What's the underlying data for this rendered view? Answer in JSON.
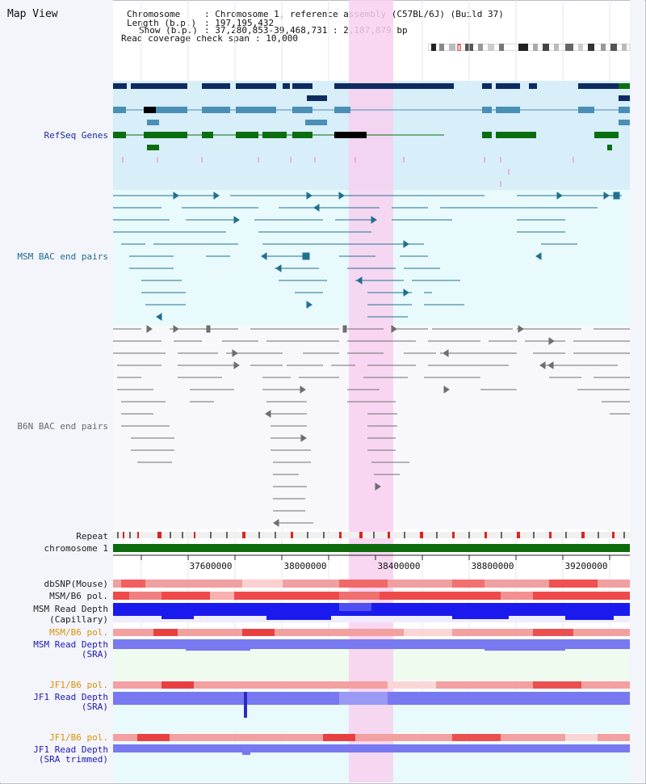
{
  "app": {
    "title": "Map View"
  },
  "info": {
    "chromosome_label": "Chromosome",
    "chromosome_value": ": Chromosome 1, reference assembly (C57BL/6J) (Build 37)",
    "length_label": "Length (b.p.)",
    "length_value": ": 197,195,432",
    "show_label": "Show (b.p.)",
    "show_value": ": 37,280,853-39,468,731 : 2,187,879 bp",
    "span_label": "Read coverage check span",
    "span_value": ": 10,000"
  },
  "tracks": {
    "refseq_genes": "RefSeq Genes",
    "msm_bac": "MSM BAC end pairs",
    "b6n_bac": "B6N BAC end pairs",
    "repeat": "Repeat",
    "chromosome": "chromosome 1",
    "dbsnp": "dbSNP(Mouse)",
    "msm_b6_pol_1": "MSM/B6 pol.",
    "msm_read_depth_cap_1": "MSM Read Depth",
    "msm_read_depth_cap_2": "(Capillary)",
    "msm_b6_pol_2": "MSM/B6 pol.",
    "msm_read_depth_sra_1": "MSM Read Depth",
    "msm_read_depth_sra_2": "(SRA)",
    "jf1_b6_pol_1": "JF1/B6 pol.",
    "jf1_read_depth_sra_1": "JF1 Read Depth",
    "jf1_read_depth_sra_2": "(SRA)",
    "jf1_b6_pol_2": "JF1/B6 pol.",
    "jf1_read_depth_trim_1": "JF1 Read Depth",
    "jf1_read_depth_trim_2": "(SRA trimmed)"
  },
  "axis": {
    "ticks": [
      "37600000",
      "38000000",
      "38400000",
      "38800000",
      "39200000"
    ]
  },
  "colors": {
    "refseq_bg": "#d8eef9",
    "msm_bg": "#e8fafc",
    "highlight": "#f8d0f0",
    "navy": "#0d2b60",
    "steel": "#4a8fb5",
    "green": "#0a6e10",
    "teal": "#21708f",
    "gray": "#6e6e6e",
    "chrom_bar": "#0d6a0d",
    "depth_blue": "#1a1aee",
    "depth_lavender": "#7878f0"
  }
}
